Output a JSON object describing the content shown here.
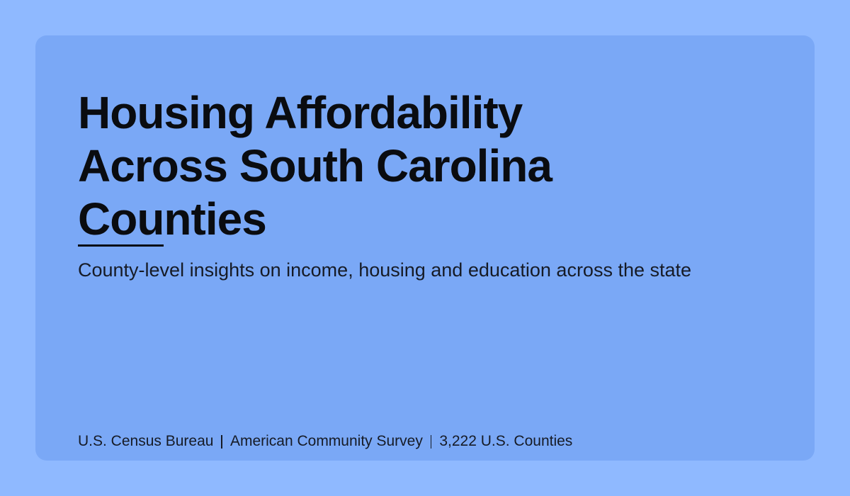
{
  "header": {
    "title": "Housing Affordability Across South Carolina Counties",
    "subtitle": "County-level insights on income, housing and education across the state"
  },
  "footer": {
    "items": [
      "U.S. Census Bureau",
      "American Community Survey",
      "3,222 U.S. Counties"
    ]
  }
}
